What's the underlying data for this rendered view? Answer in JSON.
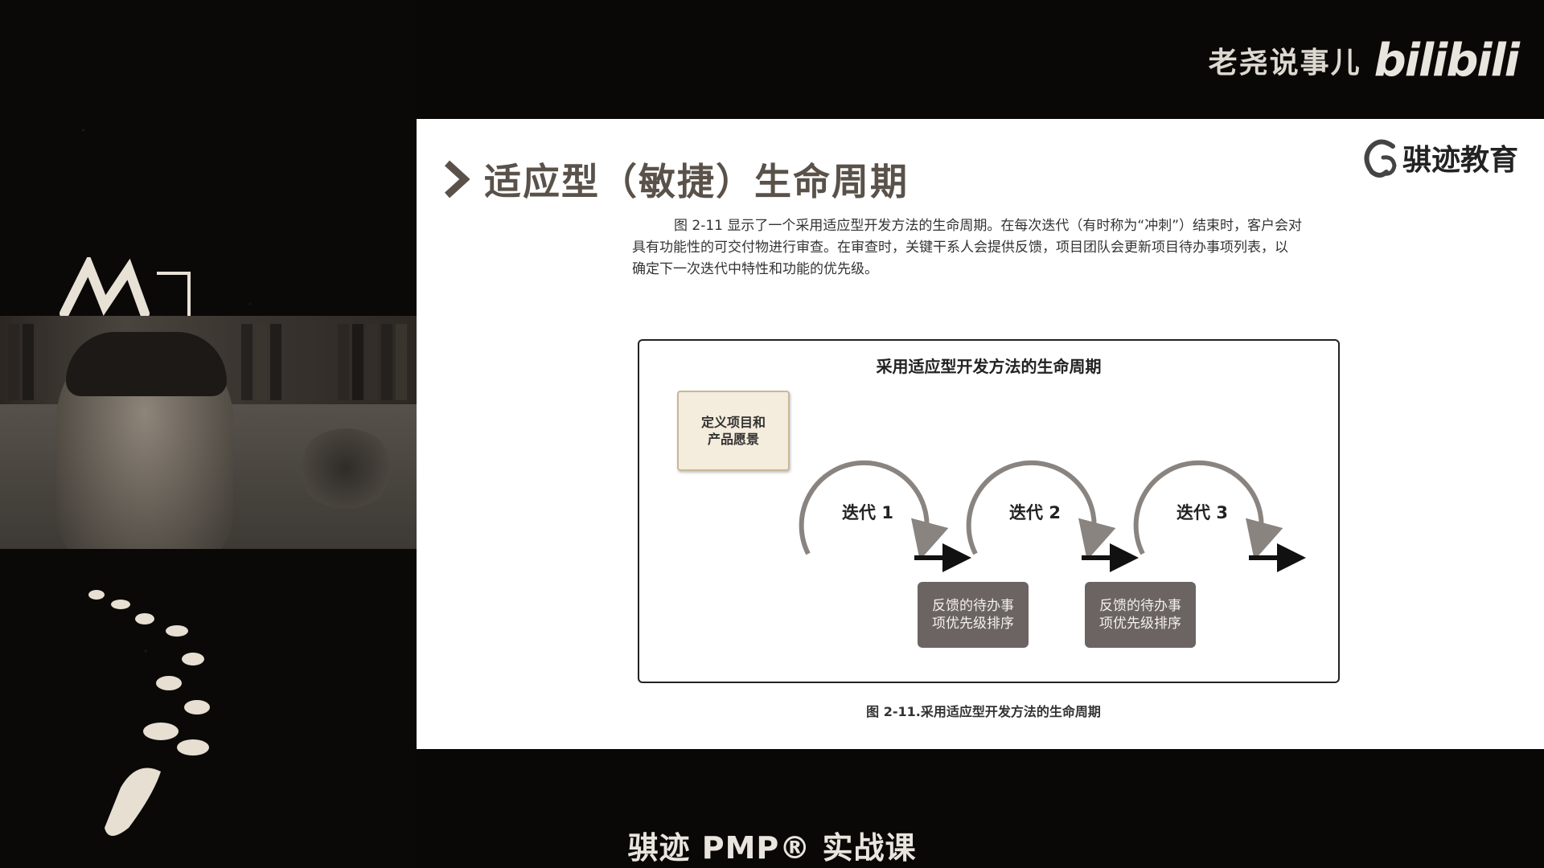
{
  "overlay": {
    "uploader": "老尧说事儿",
    "site_logo": "bilibili",
    "course_title": "骐迹 PMP® 实战课"
  },
  "slide": {
    "title": "适应型（敏捷）生命周期",
    "org_logo": "骐迹教育",
    "description_lines": [
      "图 2-11 显示了一个采用适应型开发方法的生命周期。在每次迭代（有时称为“冲刺”）结束时，客户会对",
      "具有功能性的可交付物进行审查。在审查时，关键干系人会提供反馈，项目团队会更新项目待办事项列表，以",
      "确定下一次迭代中特性和功能的优先级。"
    ],
    "diagram": {
      "title": "采用适应型开发方法的生命周期",
      "vision_line1": "定义项目和",
      "vision_line2": "产品愿景",
      "iterations": [
        "迭代 1",
        "迭代 2",
        "迭代 3"
      ],
      "backlog_line1": "反馈的待办事",
      "backlog_line2": "项优先级排序"
    },
    "caption": "图 2-11.采用适应型开发方法的生命周期"
  },
  "colors": {
    "title_text": "#5a524a",
    "backlog_fill": "#6b6462",
    "vision_fill": "#f4ecdc"
  }
}
